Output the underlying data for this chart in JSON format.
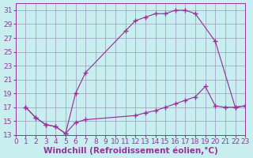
{
  "xlabel": "Windchill (Refroidissement éolien,°C)",
  "bg_color": "#c8eef0",
  "grid_color": "#9999bb",
  "line_color": "#993399",
  "xlim": [
    0,
    23
  ],
  "ylim": [
    13,
    32
  ],
  "xticks": [
    0,
    1,
    2,
    3,
    4,
    5,
    6,
    7,
    8,
    9,
    10,
    11,
    12,
    13,
    14,
    15,
    16,
    17,
    18,
    19,
    20,
    21,
    22,
    23
  ],
  "yticks": [
    13,
    15,
    17,
    19,
    21,
    23,
    25,
    27,
    29,
    31
  ],
  "curve1_x": [
    1,
    2,
    3,
    4,
    5,
    6,
    7,
    11,
    12,
    13,
    14,
    15,
    16,
    17,
    18,
    20,
    22,
    23
  ],
  "curve1_y": [
    17,
    15.5,
    14.5,
    14.2,
    13.2,
    19.0,
    22.0,
    28.0,
    29.5,
    30.0,
    30.5,
    30.5,
    31.0,
    31.0,
    30.5,
    26.5,
    17.0,
    17.2
  ],
  "curve2_x": [
    1,
    2,
    3,
    4,
    5,
    6,
    7,
    12,
    13,
    14,
    15,
    16,
    17,
    18,
    19,
    20,
    21,
    22,
    23
  ],
  "curve2_y": [
    17,
    15.5,
    14.5,
    14.2,
    13.2,
    14.8,
    15.2,
    15.8,
    16.2,
    16.5,
    17.0,
    17.5,
    18.0,
    18.5,
    20.0,
    17.2,
    17.0,
    17.0,
    17.2
  ],
  "tick_fontsize": 6.5,
  "label_fontsize": 7.5
}
